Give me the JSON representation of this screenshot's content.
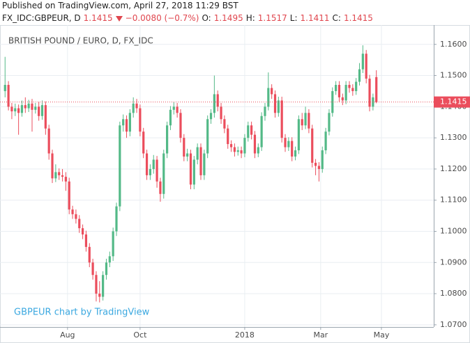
{
  "header": {
    "published": "Published on TradingView.com, April 27, 2018 11:29 BST",
    "symbol": "FX_IDC:GBPEUR, D",
    "change": "−0.0080 (−0.7%)",
    "open_label": "O:",
    "high_label": "H:",
    "low_label": "L:",
    "close_label": "C:"
  },
  "chart_data": {
    "type": "candlestick",
    "title": "BRITISH POUND / EURO, D, FX_IDC",
    "watermark": "GBPEUR chart by TradingView",
    "x": [
      1,
      3,
      5,
      7,
      9,
      11,
      13,
      15,
      17,
      19,
      21,
      23,
      25,
      27,
      29,
      31,
      33,
      35,
      37,
      39,
      41,
      43,
      45,
      47,
      49,
      51,
      53,
      55,
      57,
      59,
      61,
      63,
      65,
      67,
      69,
      71,
      73,
      75,
      77,
      79,
      81,
      83,
      85,
      87,
      89,
      91,
      93,
      95,
      97,
      99,
      101,
      103,
      105,
      107,
      109,
      111,
      113,
      115,
      117,
      119,
      121,
      123,
      125,
      127,
      129,
      131,
      133,
      135,
      137,
      139,
      141,
      143,
      145,
      147,
      149,
      151,
      153,
      155,
      157,
      159,
      161,
      163,
      165,
      167,
      169,
      171,
      173,
      175,
      177,
      179,
      181,
      183,
      185,
      187,
      189,
      191,
      193,
      195,
      197,
      199,
      201,
      203,
      205,
      207,
      209,
      211,
      213,
      215,
      217,
      219,
      221
    ],
    "open": [
      1.145,
      1.147,
      1.14,
      1.1385,
      1.1395,
      1.138,
      1.1405,
      1.1395,
      1.141,
      1.139,
      1.14,
      1.137,
      1.1405,
      1.133,
      1.125,
      1.117,
      1.119,
      1.118,
      1.1175,
      1.116,
      1.107,
      1.1055,
      1.104,
      1.101,
      1.099,
      1.095,
      1.09,
      1.086,
      1.08,
      1.079,
      1.086,
      1.09,
      1.092,
      1.1,
      1.108,
      1.134,
      1.136,
      1.132,
      1.138,
      1.141,
      1.1395,
      1.132,
      1.125,
      1.118,
      1.12,
      1.123,
      1.116,
      1.112,
      1.125,
      1.134,
      1.139,
      1.14,
      1.138,
      1.13,
      1.124,
      1.125,
      1.115,
      1.123,
      1.127,
      1.118,
      1.125,
      1.136,
      1.138,
      1.144,
      1.14,
      1.136,
      1.133,
      1.128,
      1.127,
      1.1255,
      1.126,
      1.125,
      1.13,
      1.134,
      1.131,
      1.125,
      1.127,
      1.137,
      1.14,
      1.146,
      1.144,
      1.138,
      1.142,
      1.13,
      1.127,
      1.129,
      1.124,
      1.126,
      1.136,
      1.134,
      1.138,
      1.133,
      1.122,
      1.121,
      1.12,
      1.126,
      1.132,
      1.138,
      1.145,
      1.147,
      1.143,
      1.142,
      1.147,
      1.146,
      1.145,
      1.148,
      1.152,
      1.157,
      1.149,
      1.14,
      1.1495
    ],
    "high": [
      1.156,
      1.1482,
      1.1412,
      1.141,
      1.1407,
      1.142,
      1.143,
      1.1422,
      1.1425,
      1.1412,
      1.1415,
      1.142,
      1.1417,
      1.1342,
      1.1262,
      1.1215,
      1.1202,
      1.12,
      1.119,
      1.1172,
      1.1082,
      1.107,
      1.1052,
      1.1022,
      1.1002,
      1.0962,
      1.0912,
      1.0872,
      1.084,
      1.0872,
      1.0912,
      1.0935,
      1.1012,
      1.1092,
      1.1352,
      1.1375,
      1.1372,
      1.1392,
      1.143,
      1.1425,
      1.1407,
      1.1332,
      1.1262,
      1.1215,
      1.1245,
      1.1242,
      1.1172,
      1.1262,
      1.1352,
      1.1402,
      1.1415,
      1.1412,
      1.1392,
      1.1312,
      1.1265,
      1.1262,
      1.1242,
      1.1282,
      1.1282,
      1.1262,
      1.1372,
      1.1392,
      1.15,
      1.1452,
      1.1412,
      1.1372,
      1.1342,
      1.1292,
      1.1282,
      1.1272,
      1.1272,
      1.1312,
      1.1352,
      1.1352,
      1.1322,
      1.1282,
      1.1382,
      1.1412,
      1.151,
      1.1472,
      1.1452,
      1.1432,
      1.1432,
      1.1312,
      1.1302,
      1.1302,
      1.1272,
      1.1372,
      1.138,
      1.14,
      1.1392,
      1.1342,
      1.1232,
      1.1222,
      1.1272,
      1.1332,
      1.1392,
      1.1462,
      1.1482,
      1.1482,
      1.1442,
      1.1482,
      1.1482,
      1.1472,
      1.1492,
      1.154,
      1.1597,
      1.1582,
      1.1502,
      1.1442,
      1.1517
    ],
    "low": [
      1.143,
      1.1388,
      1.136,
      1.137,
      1.131,
      1.1368,
      1.138,
      1.1383,
      1.132,
      1.1378,
      1.1355,
      1.1358,
      1.131,
      1.123,
      1.1155,
      1.1158,
      1.1165,
      1.116,
      1.113,
      1.1055,
      1.104,
      1.1025,
      1.0995,
      1.0975,
      1.0935,
      1.0885,
      1.0845,
      1.0775,
      1.0772,
      1.0778,
      1.0845,
      1.0885,
      1.0905,
      1.0985,
      1.1065,
      1.132,
      1.13,
      1.1305,
      1.1365,
      1.138,
      1.1305,
      1.1235,
      1.1165,
      1.1165,
      1.1185,
      1.114,
      1.1095,
      1.1105,
      1.1235,
      1.1325,
      1.1375,
      1.1365,
      1.1285,
      1.1225,
      1.1225,
      1.1135,
      1.1135,
      1.1215,
      1.1165,
      1.1165,
      1.1235,
      1.1345,
      1.1365,
      1.1385,
      1.1345,
      1.1315,
      1.1265,
      1.1255,
      1.124,
      1.1243,
      1.1235,
      1.1238,
      1.1288,
      1.1295,
      1.1235,
      1.1238,
      1.1258,
      1.1355,
      1.1388,
      1.1425,
      1.1365,
      1.1368,
      1.1285,
      1.1255,
      1.1258,
      1.1225,
      1.1228,
      1.1248,
      1.1325,
      1.1328,
      1.1315,
      1.1205,
      1.118,
      1.116,
      1.1188,
      1.1248,
      1.1308,
      1.1368,
      1.1438,
      1.1415,
      1.1405,
      1.1408,
      1.1445,
      1.1435,
      1.1438,
      1.1468,
      1.1508,
      1.1475,
      1.1385,
      1.1388,
      1.1411
    ],
    "close": [
      1.147,
      1.14,
      1.1385,
      1.1395,
      1.138,
      1.1405,
      1.1395,
      1.141,
      1.139,
      1.14,
      1.137,
      1.1405,
      1.133,
      1.125,
      1.117,
      1.119,
      1.118,
      1.1175,
      1.116,
      1.107,
      1.1055,
      1.104,
      1.101,
      1.099,
      1.095,
      1.09,
      1.086,
      1.08,
      1.079,
      1.086,
      1.09,
      1.092,
      1.1,
      1.108,
      1.134,
      1.136,
      1.132,
      1.138,
      1.141,
      1.1395,
      1.132,
      1.125,
      1.118,
      1.12,
      1.123,
      1.116,
      1.112,
      1.125,
      1.134,
      1.139,
      1.14,
      1.138,
      1.13,
      1.124,
      1.125,
      1.115,
      1.123,
      1.127,
      1.118,
      1.125,
      1.136,
      1.138,
      1.144,
      1.14,
      1.136,
      1.133,
      1.128,
      1.127,
      1.1255,
      1.126,
      1.125,
      1.13,
      1.134,
      1.131,
      1.125,
      1.127,
      1.137,
      1.14,
      1.146,
      1.144,
      1.138,
      1.142,
      1.13,
      1.127,
      1.129,
      1.124,
      1.126,
      1.136,
      1.134,
      1.138,
      1.133,
      1.122,
      1.121,
      1.12,
      1.126,
      1.132,
      1.138,
      1.145,
      1.147,
      1.143,
      1.142,
      1.147,
      1.146,
      1.145,
      1.148,
      1.152,
      1.157,
      1.149,
      1.14,
      1.143,
      1.1415
    ],
    "up_color": "#53b987",
    "down_color": "#eb4d5c",
    "last_price_color": "#eb4d5c",
    "xlim": [
      -2,
      255
    ],
    "xticks": [
      {
        "value": 38,
        "label": "Aug"
      },
      {
        "value": 81,
        "label": "Oct"
      },
      {
        "value": 143,
        "label": "2018"
      },
      {
        "value": 188,
        "label": "Mar"
      },
      {
        "value": 224,
        "label": "May"
      }
    ],
    "ylim": [
      1.0693,
      1.1662
    ],
    "yticks": [
      {
        "value": 1.07,
        "label": "1.0700"
      },
      {
        "value": 1.08,
        "label": "1.0800"
      },
      {
        "value": 1.09,
        "label": "1.0900"
      },
      {
        "value": 1.1,
        "label": "1.1000"
      },
      {
        "value": 1.11,
        "label": "1.1100"
      },
      {
        "value": 1.12,
        "label": "1.1200"
      },
      {
        "value": 1.13,
        "label": "1.1300"
      },
      {
        "value": 1.14,
        "label": "1.1400"
      },
      {
        "value": 1.15,
        "label": "1.1500"
      },
      {
        "value": 1.16,
        "label": "1.1600"
      }
    ],
    "grid": true
  }
}
